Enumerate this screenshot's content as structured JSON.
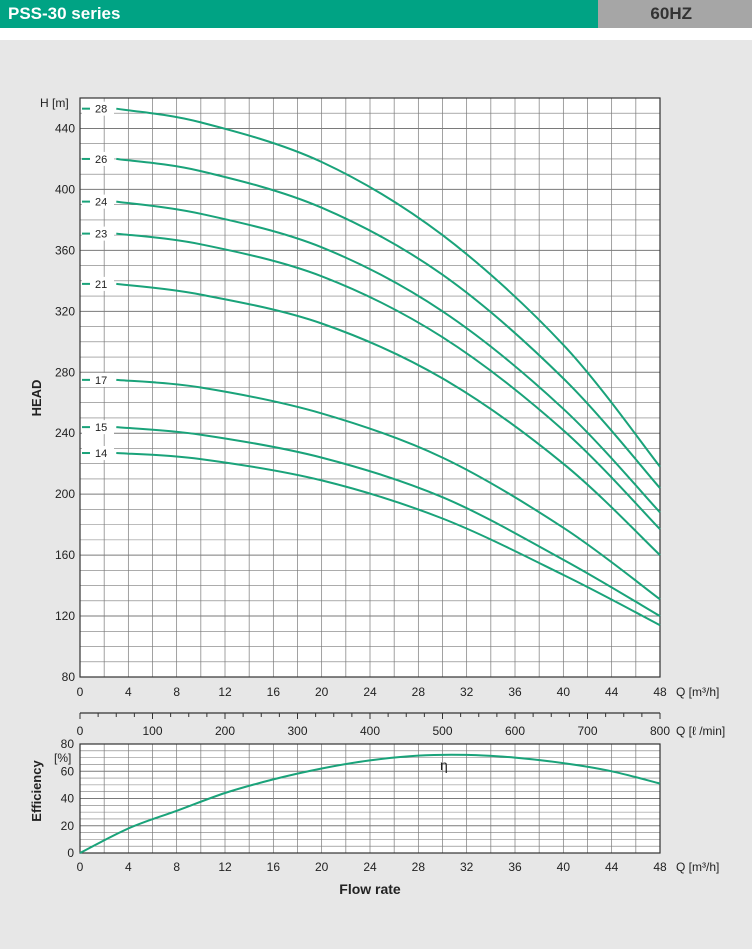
{
  "header": {
    "title": "PSS-30 series",
    "frequency": "60HZ"
  },
  "colors": {
    "curve": "#1aa37a",
    "header": "#00a384",
    "header_alt": "#a6a6a6",
    "panel": "#e7e7e7"
  },
  "chart_data": [
    {
      "type": "line",
      "title": "",
      "ylabel": "HEAD",
      "yunit": "H [m]",
      "xunit": "Q [m³/h]",
      "xlim": [
        0,
        48
      ],
      "ylim": [
        80,
        460
      ],
      "xticks": [
        0,
        4,
        8,
        12,
        16,
        20,
        24,
        28,
        32,
        36,
        40,
        44,
        48
      ],
      "yticks": [
        80,
        120,
        160,
        200,
        240,
        280,
        320,
        360,
        400,
        440
      ],
      "secondary_x": {
        "unit": "Q [ℓ /min]",
        "xlim": [
          0,
          800
        ],
        "ticks": [
          0,
          100,
          200,
          300,
          400,
          500,
          600,
          700,
          800
        ]
      },
      "series": [
        {
          "name": "28",
          "points": [
            [
              3,
              453
            ],
            [
              10,
              444
            ],
            [
              20,
              418
            ],
            [
              30,
              370
            ],
            [
              40,
              298
            ],
            [
              48,
              218
            ]
          ]
        },
        {
          "name": "26",
          "points": [
            [
              3,
              420
            ],
            [
              10,
              412
            ],
            [
              20,
              388
            ],
            [
              30,
              344
            ],
            [
              40,
              276
            ],
            [
              48,
              204
            ]
          ]
        },
        {
          "name": "24",
          "points": [
            [
              3,
              392
            ],
            [
              10,
              384
            ],
            [
              20,
              362
            ],
            [
              30,
              320
            ],
            [
              40,
              256
            ],
            [
              48,
              188
            ]
          ]
        },
        {
          "name": "23",
          "points": [
            [
              3,
              371
            ],
            [
              10,
              364
            ],
            [
              20,
              343
            ],
            [
              30,
              303
            ],
            [
              40,
              242
            ],
            [
              48,
              177
            ]
          ]
        },
        {
          "name": "21",
          "points": [
            [
              3,
              338
            ],
            [
              10,
              331
            ],
            [
              20,
              312
            ],
            [
              30,
              276
            ],
            [
              40,
              220
            ],
            [
              48,
              160
            ]
          ]
        },
        {
          "name": "17",
          "points": [
            [
              3,
              275
            ],
            [
              10,
              270
            ],
            [
              20,
              253
            ],
            [
              30,
              224
            ],
            [
              40,
              178
            ],
            [
              48,
              131
            ]
          ]
        },
        {
          "name": "15",
          "points": [
            [
              3,
              244
            ],
            [
              10,
              239
            ],
            [
              20,
              224
            ],
            [
              30,
              198
            ],
            [
              40,
              157
            ],
            [
              48,
              120
            ]
          ]
        },
        {
          "name": "14",
          "points": [
            [
              3,
              227
            ],
            [
              10,
              223
            ],
            [
              20,
              209
            ],
            [
              30,
              184
            ],
            [
              40,
              147
            ],
            [
              48,
              114
            ]
          ]
        }
      ]
    },
    {
      "type": "line",
      "title": "",
      "ylabel": "Efficiency",
      "yunit": "[%]",
      "xlabel": "Flow rate",
      "xunit": "Q [m³/h]",
      "xlim": [
        0,
        48
      ],
      "ylim": [
        0,
        80
      ],
      "xticks": [
        0,
        4,
        8,
        12,
        16,
        20,
        24,
        28,
        32,
        36,
        40,
        44,
        48
      ],
      "yticks": [
        0,
        20,
        40,
        60,
        80
      ],
      "series": [
        {
          "name": "η",
          "points": [
            [
              0,
              0
            ],
            [
              4,
              18
            ],
            [
              8,
              31
            ],
            [
              12,
              44
            ],
            [
              16,
              54
            ],
            [
              20,
              62
            ],
            [
              24,
              68
            ],
            [
              28,
              71.5
            ],
            [
              32,
              72
            ],
            [
              36,
              70
            ],
            [
              40,
              66
            ],
            [
              44,
              60
            ],
            [
              48,
              51
            ]
          ]
        }
      ]
    }
  ]
}
